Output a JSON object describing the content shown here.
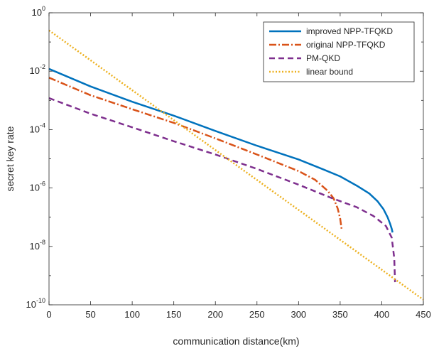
{
  "chart_data": {
    "type": "line",
    "xlabel": "communication distance(km)",
    "ylabel": "secret key rate",
    "xlim": [
      0,
      450
    ],
    "ylim_exponent": [
      -10,
      0
    ],
    "yscale": "log",
    "x_ticks": [
      "0",
      "50",
      "100",
      "150",
      "200",
      "250",
      "300",
      "350",
      "400",
      "450"
    ],
    "y_ticks": [
      {
        "base": "10",
        "exp": "0",
        "value": 1
      },
      {
        "base": "10",
        "exp": "-2",
        "value": 0.01
      },
      {
        "base": "10",
        "exp": "-4",
        "value": 0.0001
      },
      {
        "base": "10",
        "exp": "-6",
        "value": 1e-06
      },
      {
        "base": "10",
        "exp": "-8",
        "value": 1e-08
      },
      {
        "base": "10",
        "exp": "-10",
        "value": 1e-10
      }
    ],
    "grid": false,
    "legend_position": "top-right",
    "series": [
      {
        "name": "improved NPP-TFQKD",
        "color": "#0072BD",
        "dash": "solid",
        "x": [
          0,
          50,
          100,
          150,
          200,
          250,
          300,
          330,
          350,
          370,
          385,
          395,
          402,
          407,
          410,
          412,
          413
        ],
        "y": [
          0.012,
          0.003,
          0.0009,
          0.0003,
          9e-05,
          2.8e-05,
          9.5e-06,
          4.3e-06,
          2.5e-06,
          1.2e-06,
          6.5e-07,
          3.5e-07,
          1.9e-07,
          1e-07,
          6e-08,
          4e-08,
          3e-08
        ]
      },
      {
        "name": "original NPP-TFQKD",
        "color": "#D95319",
        "dash": "dashdot",
        "x": [
          0,
          50,
          100,
          150,
          200,
          250,
          300,
          320,
          335,
          342,
          347,
          350,
          352
        ],
        "y": [
          0.006,
          0.0015,
          0.0005,
          0.00017,
          5e-05,
          1.4e-05,
          3.8e-06,
          1.9e-06,
          8e-07,
          4.5e-07,
          2e-07,
          9e-08,
          3.5e-08
        ]
      },
      {
        "name": "PM-QKD",
        "color": "#7E2F8E",
        "dash": "dashed",
        "x": [
          0,
          50,
          100,
          150,
          200,
          250,
          300,
          340,
          370,
          390,
          405,
          412,
          415,
          416
        ],
        "y": [
          0.0012,
          0.00035,
          0.00012,
          4e-05,
          1.4e-05,
          4.5e-06,
          1.3e-06,
          4.5e-07,
          2.2e-07,
          1.1e-07,
          5e-08,
          2e-08,
          4e-09,
          6e-10
        ]
      },
      {
        "name": "linear bound",
        "color": "#EDB120",
        "dash": "dotted",
        "x": [
          0,
          450
        ],
        "y": [
          0.25,
          1.5e-10
        ]
      }
    ]
  }
}
